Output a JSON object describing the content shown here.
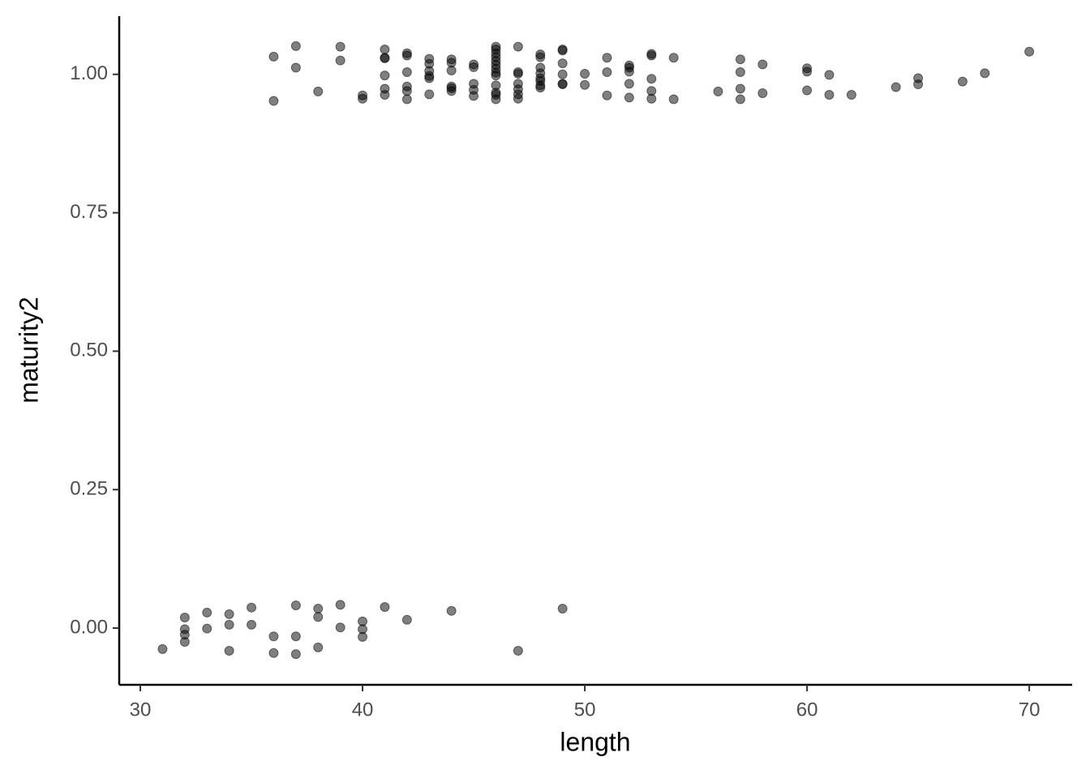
{
  "chart_data": {
    "type": "scatter",
    "x_label": "length",
    "y_label": "maturity2",
    "x": [
      31,
      32,
      32,
      32,
      32,
      33,
      33,
      34,
      34,
      34,
      35,
      35,
      36,
      36,
      37,
      37,
      37,
      38,
      38,
      38,
      39,
      39,
      40,
      40,
      40,
      41,
      42,
      44,
      47,
      49,
      36,
      36,
      37,
      37,
      38,
      39,
      39,
      40,
      40,
      41,
      41,
      41,
      41,
      41,
      41,
      42,
      42,
      42,
      42,
      42,
      42,
      43,
      43,
      43,
      43,
      43,
      43,
      44,
      44,
      44,
      44,
      44,
      44,
      45,
      45,
      45,
      45,
      45,
      46,
      46,
      46,
      46,
      46,
      46,
      46,
      46,
      46,
      46,
      46,
      46,
      46,
      47,
      47,
      47,
      47,
      47,
      47,
      47,
      48,
      48,
      48,
      48,
      48,
      48,
      48,
      48,
      49,
      49,
      49,
      49,
      49,
      49,
      50,
      50,
      51,
      51,
      51,
      52,
      52,
      52,
      52,
      52,
      53,
      53,
      53,
      53,
      53,
      54,
      54,
      56,
      57,
      57,
      57,
      57,
      58,
      58,
      60,
      60,
      60,
      61,
      61,
      62,
      64,
      65,
      65,
      67,
      68,
      70
    ],
    "values": [
      -0.038,
      0.019,
      -0.002,
      -0.012,
      -0.025,
      0.028,
      -0.001,
      0.025,
      0.006,
      -0.041,
      0.037,
      0.006,
      -0.015,
      -0.045,
      0.041,
      -0.015,
      -0.047,
      0.035,
      0.02,
      -0.035,
      0.042,
      0.001,
      0.012,
      -0.002,
      -0.016,
      0.038,
      0.015,
      0.031,
      -0.041,
      0.035,
      1.032,
      0.952,
      1.051,
      1.012,
      0.969,
      1.05,
      1.025,
      0.962,
      0.956,
      1.045,
      1.029,
      1.03,
      0.998,
      0.974,
      0.963,
      1.038,
      1.034,
      1.004,
      0.978,
      0.97,
      0.955,
      1.028,
      1.019,
      1.006,
      0.997,
      0.993,
      0.964,
      1.027,
      1.021,
      1.007,
      0.978,
      0.975,
      0.97,
      1.018,
      1.013,
      0.983,
      0.972,
      0.961,
      1.05,
      1.045,
      1.038,
      1.031,
      1.024,
      1.017,
      1.01,
      1.003,
      0.998,
      0.98,
      0.967,
      0.963,
      0.955,
      1.05,
      1.004,
      1.001,
      0.983,
      0.973,
      0.964,
      0.956,
      1.036,
      1.031,
      1.012,
      1.002,
      0.993,
      0.988,
      0.98,
      0.976,
      1.045,
      1.043,
      1.02,
      1.0,
      0.983,
      0.982,
      1.001,
      0.981,
      1.03,
      1.004,
      0.962,
      1.016,
      1.012,
      1.005,
      0.983,
      0.958,
      1.037,
      1.034,
      0.992,
      0.97,
      0.956,
      1.03,
      0.955,
      0.969,
      1.027,
      1.004,
      0.974,
      0.955,
      1.018,
      0.966,
      1.011,
      1.005,
      0.971,
      0.999,
      0.963,
      0.963,
      0.977,
      0.993,
      0.982,
      0.987,
      1.002,
      1.041
    ],
    "color": "#000000",
    "opacity": 0.5,
    "xlim": [
      29.05,
      71.93
    ],
    "xticks": [
      30,
      40,
      50,
      60,
      70
    ],
    "ylim": [
      -0.1025,
      1.105
    ],
    "yticks": [
      {
        "value": 0,
        "label": "0.00"
      },
      {
        "value": 0.25,
        "label": "0.25"
      },
      {
        "value": 0.5,
        "label": "0.50"
      },
      {
        "value": 0.75,
        "label": "0.75"
      },
      {
        "value": 1,
        "label": "1.00"
      }
    ]
  }
}
